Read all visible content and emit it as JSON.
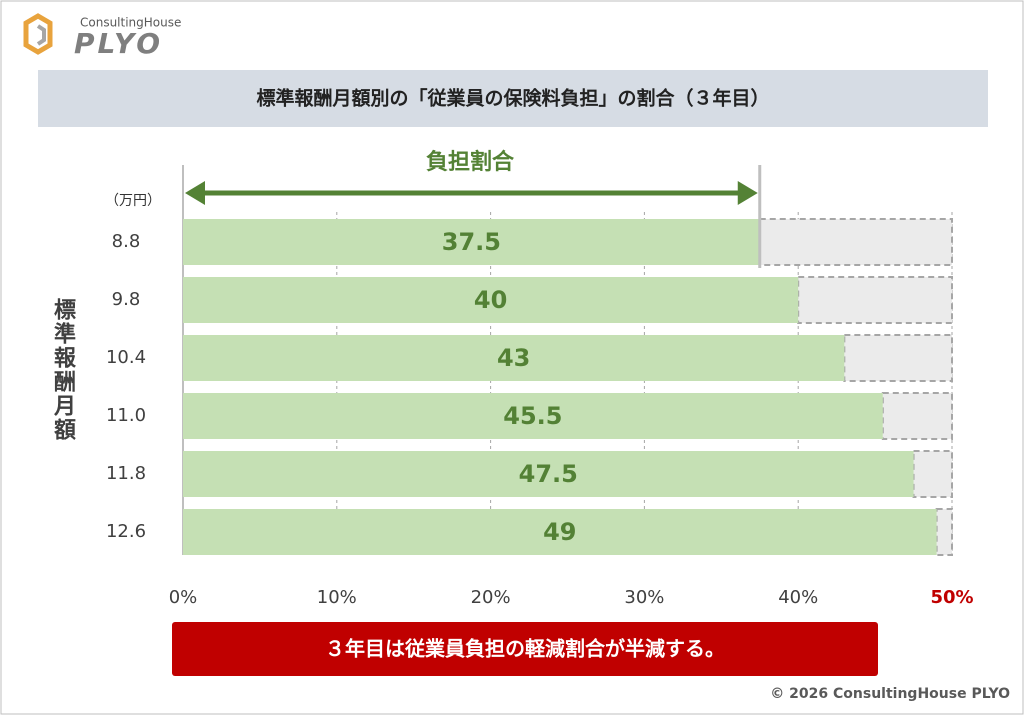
{
  "brand": {
    "tagline": "ConsultingHouse",
    "name": "PLYO"
  },
  "chart_data": {
    "type": "bar",
    "orientation": "horizontal",
    "title": "標準報酬月額別の「従業員の保険料負担」の割合（３年目）",
    "y_label": "標準報酬月額",
    "unit_label": "（万円）",
    "annotation": "負担割合",
    "categories": [
      "8.8",
      "9.8",
      "10.4",
      "11.0",
      "11.8",
      "12.6"
    ],
    "values": [
      37.5,
      40,
      43,
      45.5,
      47.5,
      49
    ],
    "color": "#c5e0b4",
    "label_color": "#538135",
    "remainder_color": "#ebebeb",
    "xlim": [
      0,
      50
    ],
    "xticks": [
      {
        "value": 0,
        "label": "0%"
      },
      {
        "value": 10,
        "label": "10%"
      },
      {
        "value": 20,
        "label": "20%"
      },
      {
        "value": 30,
        "label": "30%"
      },
      {
        "value": 40,
        "label": "40%"
      },
      {
        "value": 50,
        "label": "50%"
      }
    ],
    "grid": true
  },
  "callout": "３年目は従業員負担の軽減割合が半減する。",
  "copyright": "© 2026 ConsultingHouse PLYO"
}
